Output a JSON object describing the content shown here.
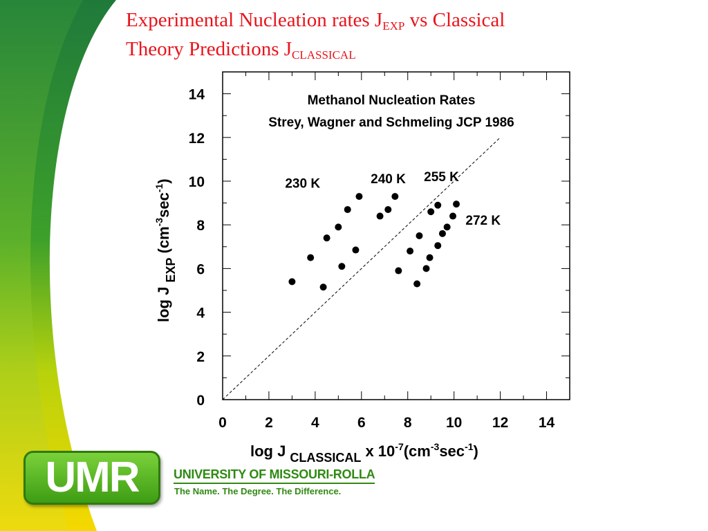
{
  "slide": {
    "title_line1": "Experimental Nucleation rates J",
    "title_sub1": "EXP",
    "title_mid": " vs Classical",
    "title_line2": "Theory Predictions J",
    "title_sub2": "CLASSICAL"
  },
  "branding": {
    "logo_text": "UMR",
    "university_name": "UNIVERSITY OF MISSOURI-ROLLA",
    "motto": "The Name. The Degree. The Difference.",
    "logo_color": "#4aaa1c",
    "accent_yellow": "#f5d800",
    "accent_green": "#2d8a2a"
  },
  "chart_data": {
    "type": "scatter",
    "title": "Methanol Nucleation Rates",
    "subtitle": "Strey, Wagner and Schmeling JCP 1986",
    "xlabel": {
      "main": "log J",
      "sub": "CLASSICAL",
      "mid": " x 10",
      "sup1": "-7",
      "unit_a": "(cm",
      "sup2": "-3",
      "unit_b": "sec",
      "sup3": "-1",
      "unit_c": ")"
    },
    "ylabel": {
      "main": "log J",
      "sub": "EXP",
      "unit_a": " (cm",
      "sup2": "-3",
      "unit_b": "sec",
      "sup3": "-1",
      "unit_c": ")"
    },
    "xlim": [
      0,
      15
    ],
    "ylim": [
      0,
      15
    ],
    "xticks": [
      0,
      2,
      4,
      6,
      8,
      10,
      12,
      14
    ],
    "yticks": [
      0,
      2,
      4,
      6,
      8,
      10,
      12,
      14
    ],
    "reference_line": {
      "style": "dashed",
      "x": [
        0,
        12
      ],
      "y": [
        0,
        12
      ]
    },
    "series": [
      {
        "name": "230 K",
        "label_x": 2.7,
        "label_y": 9.7,
        "points": [
          [
            3.0,
            5.4
          ],
          [
            3.8,
            6.5
          ],
          [
            4.5,
            7.4
          ],
          [
            5.0,
            7.9
          ],
          [
            5.4,
            8.7
          ],
          [
            5.9,
            9.3
          ]
        ]
      },
      {
        "name": "240 K",
        "label_x": 6.4,
        "label_y": 9.9,
        "points": [
          [
            4.35,
            5.15
          ],
          [
            5.15,
            6.1
          ],
          [
            5.75,
            6.85
          ],
          [
            6.8,
            8.4
          ],
          [
            7.15,
            8.7
          ],
          [
            7.45,
            9.3
          ]
        ]
      },
      {
        "name": "255 K",
        "label_x": 8.7,
        "label_y": 10.0,
        "points": [
          [
            7.6,
            5.9
          ],
          [
            8.4,
            5.3
          ],
          [
            8.8,
            6.0
          ],
          [
            8.1,
            6.8
          ],
          [
            8.5,
            7.5
          ],
          [
            9.0,
            8.6
          ],
          [
            9.3,
            8.9
          ]
        ]
      },
      {
        "name": "272 K",
        "label_x": 10.5,
        "label_y": 8.0,
        "points": [
          [
            8.95,
            6.5
          ],
          [
            9.3,
            7.05
          ],
          [
            9.5,
            7.6
          ],
          [
            9.7,
            7.9
          ],
          [
            9.95,
            8.4
          ],
          [
            10.1,
            8.95
          ]
        ]
      }
    ]
  }
}
